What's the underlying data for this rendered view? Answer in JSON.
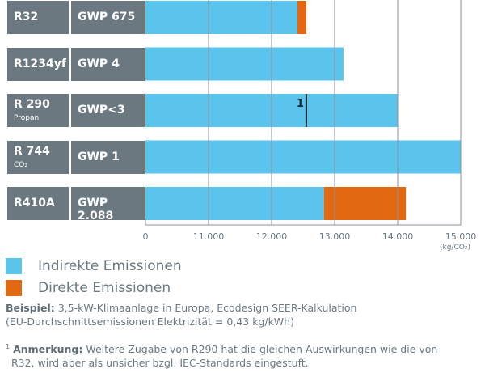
{
  "chart_data": {
    "type": "bar",
    "orientation": "horizontal",
    "stacked": true,
    "categories": [
      "R32",
      "R1234yf",
      "R 290",
      "R 744",
      "R410A"
    ],
    "category_sublabels": [
      "",
      "",
      "Propan",
      "CO₂",
      ""
    ],
    "gwp_labels": [
      "GWP 675",
      "GWP 4",
      "GWP<3",
      "GWP 1",
      "GWP 2.088"
    ],
    "series": [
      {
        "name": "Indirekte Emissionen",
        "color": "#5bc4ec",
        "values": [
          12410,
          13140,
          14000,
          15000,
          12830
        ]
      },
      {
        "name": "Direkte Emissionen",
        "color": "#e2690f",
        "values": [
          140,
          0,
          0,
          0,
          1300
        ]
      }
    ],
    "footnote_marker": {
      "category": "R 290",
      "label": "1",
      "value": 12550
    },
    "xlim": [
      10000,
      15000
    ],
    "axis_break": true,
    "tick_labels": [
      "0",
      "11.000",
      "12.000",
      "13.000",
      "14.000",
      "15.000"
    ],
    "xunit": "(kg/CO₂)",
    "grid": true,
    "legend_position": "bottom-left",
    "label_color": "#6b7880"
  },
  "notes": {
    "example_bold": "Beispiel:",
    "example_text": " 3,5-kW-Klimaanlage in Europa, Ecodesign SEER-Kalkulation",
    "example_line2": "(EU-Durchschnittsemissionen Elektrizität = 0,43 kg/kWh)",
    "footnote_sup": "1",
    "footnote_bold": "Anmerkung:",
    "footnote_text": " Weitere Zugabe von R290 hat die gleichen Auswirkungen wie die von",
    "footnote_line2": "R32, wird aber als unsicher bzgl. IEC-Standards eingestuft."
  }
}
